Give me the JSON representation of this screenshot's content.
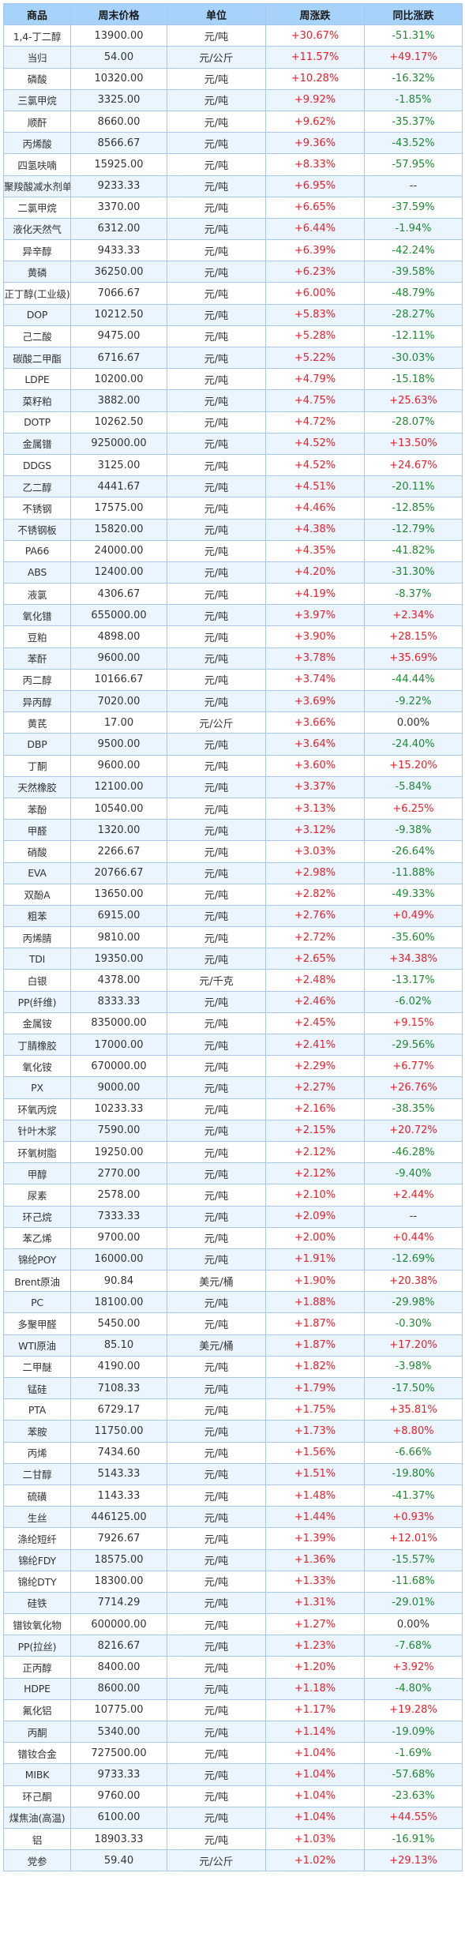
{
  "headers": [
    "商品",
    "周末价格",
    "单位",
    "周涨跌",
    "同比涨跌"
  ],
  "colors": {
    "header_bg": "#a7d3fb",
    "alt_row_bg": "#eaf5ff",
    "up": "#e8202a",
    "down": "#1b8a2d",
    "border": "#a9c7e6"
  },
  "rows": [
    {
      "name": "1,4-丁二醇",
      "price": "13900.00",
      "unit": "元/吨",
      "weekly": "+30.67%",
      "yoy": "-51.31%"
    },
    {
      "name": "当归",
      "price": "54.00",
      "unit": "元/公斤",
      "weekly": "+11.57%",
      "yoy": "+49.17%"
    },
    {
      "name": "磷酸",
      "price": "10320.00",
      "unit": "元/吨",
      "weekly": "+10.28%",
      "yoy": "-16.32%"
    },
    {
      "name": "三氯甲烷",
      "price": "3325.00",
      "unit": "元/吨",
      "weekly": "+9.92%",
      "yoy": "-1.85%"
    },
    {
      "name": "顺酐",
      "price": "8660.00",
      "unit": "元/吨",
      "weekly": "+9.62%",
      "yoy": "-35.37%"
    },
    {
      "name": "丙烯酸",
      "price": "8566.67",
      "unit": "元/吨",
      "weekly": "+9.36%",
      "yoy": "-43.52%"
    },
    {
      "name": "四氢呋喃",
      "price": "15925.00",
      "unit": "元/吨",
      "weekly": "+8.33%",
      "yoy": "-57.95%"
    },
    {
      "name": "聚羧酸减水剂单体",
      "price": "9233.33",
      "unit": "元/吨",
      "weekly": "+6.95%",
      "yoy": "--"
    },
    {
      "name": "二氯甲烷",
      "price": "3370.00",
      "unit": "元/吨",
      "weekly": "+6.65%",
      "yoy": "-37.59%"
    },
    {
      "name": "液化天然气",
      "price": "6312.00",
      "unit": "元/吨",
      "weekly": "+6.44%",
      "yoy": "-1.94%"
    },
    {
      "name": "异辛醇",
      "price": "9433.33",
      "unit": "元/吨",
      "weekly": "+6.39%",
      "yoy": "-42.24%"
    },
    {
      "name": "黄磷",
      "price": "36250.00",
      "unit": "元/吨",
      "weekly": "+6.23%",
      "yoy": "-39.58%"
    },
    {
      "name": "正丁醇(工业级)",
      "price": "7066.67",
      "unit": "元/吨",
      "weekly": "+6.00%",
      "yoy": "-48.79%"
    },
    {
      "name": "DOP",
      "price": "10212.50",
      "unit": "元/吨",
      "weekly": "+5.83%",
      "yoy": "-28.27%"
    },
    {
      "name": "己二酸",
      "price": "9475.00",
      "unit": "元/吨",
      "weekly": "+5.28%",
      "yoy": "-12.11%"
    },
    {
      "name": "碳酸二甲酯",
      "price": "6716.67",
      "unit": "元/吨",
      "weekly": "+5.22%",
      "yoy": "-30.03%"
    },
    {
      "name": "LDPE",
      "price": "10200.00",
      "unit": "元/吨",
      "weekly": "+4.79%",
      "yoy": "-15.18%"
    },
    {
      "name": "菜籽粕",
      "price": "3882.00",
      "unit": "元/吨",
      "weekly": "+4.75%",
      "yoy": "+25.63%"
    },
    {
      "name": "DOTP",
      "price": "10262.50",
      "unit": "元/吨",
      "weekly": "+4.72%",
      "yoy": "-28.07%"
    },
    {
      "name": "金属镨",
      "price": "925000.00",
      "unit": "元/吨",
      "weekly": "+4.52%",
      "yoy": "+13.50%"
    },
    {
      "name": "DDGS",
      "price": "3125.00",
      "unit": "元/吨",
      "weekly": "+4.52%",
      "yoy": "+24.67%"
    },
    {
      "name": "乙二醇",
      "price": "4441.67",
      "unit": "元/吨",
      "weekly": "+4.51%",
      "yoy": "-20.11%"
    },
    {
      "name": "不锈钢",
      "price": "17575.00",
      "unit": "元/吨",
      "weekly": "+4.46%",
      "yoy": "-12.85%"
    },
    {
      "name": "不锈钢板",
      "price": "15820.00",
      "unit": "元/吨",
      "weekly": "+4.38%",
      "yoy": "-12.79%"
    },
    {
      "name": "PA66",
      "price": "24000.00",
      "unit": "元/吨",
      "weekly": "+4.35%",
      "yoy": "-41.82%"
    },
    {
      "name": "ABS",
      "price": "12400.00",
      "unit": "元/吨",
      "weekly": "+4.20%",
      "yoy": "-31.30%"
    },
    {
      "name": "液氯",
      "price": "4306.67",
      "unit": "元/吨",
      "weekly": "+4.19%",
      "yoy": "-8.37%"
    },
    {
      "name": "氧化镨",
      "price": "655000.00",
      "unit": "元/吨",
      "weekly": "+3.97%",
      "yoy": "+2.34%"
    },
    {
      "name": "豆粕",
      "price": "4898.00",
      "unit": "元/吨",
      "weekly": "+3.90%",
      "yoy": "+28.15%"
    },
    {
      "name": "苯酐",
      "price": "9600.00",
      "unit": "元/吨",
      "weekly": "+3.78%",
      "yoy": "+35.69%"
    },
    {
      "name": "丙二醇",
      "price": "10166.67",
      "unit": "元/吨",
      "weekly": "+3.74%",
      "yoy": "-44.44%"
    },
    {
      "name": "异丙醇",
      "price": "7020.00",
      "unit": "元/吨",
      "weekly": "+3.69%",
      "yoy": "-9.22%"
    },
    {
      "name": "黄芪",
      "price": "17.00",
      "unit": "元/公斤",
      "weekly": "+3.66%",
      "yoy": "0.00%"
    },
    {
      "name": "DBP",
      "price": "9500.00",
      "unit": "元/吨",
      "weekly": "+3.64%",
      "yoy": "-24.40%"
    },
    {
      "name": "丁酮",
      "price": "9600.00",
      "unit": "元/吨",
      "weekly": "+3.60%",
      "yoy": "+15.20%"
    },
    {
      "name": "天然橡胶",
      "price": "12100.00",
      "unit": "元/吨",
      "weekly": "+3.37%",
      "yoy": "-5.84%"
    },
    {
      "name": "苯酚",
      "price": "10540.00",
      "unit": "元/吨",
      "weekly": "+3.13%",
      "yoy": "+6.25%"
    },
    {
      "name": "甲醛",
      "price": "1320.00",
      "unit": "元/吨",
      "weekly": "+3.12%",
      "yoy": "-9.38%"
    },
    {
      "name": "硝酸",
      "price": "2266.67",
      "unit": "元/吨",
      "weekly": "+3.03%",
      "yoy": "-26.64%"
    },
    {
      "name": "EVA",
      "price": "20766.67",
      "unit": "元/吨",
      "weekly": "+2.98%",
      "yoy": "-11.88%"
    },
    {
      "name": "双酚A",
      "price": "13650.00",
      "unit": "元/吨",
      "weekly": "+2.82%",
      "yoy": "-49.33%"
    },
    {
      "name": "粗苯",
      "price": "6915.00",
      "unit": "元/吨",
      "weekly": "+2.76%",
      "yoy": "+0.49%"
    },
    {
      "name": "丙烯腈",
      "price": "9810.00",
      "unit": "元/吨",
      "weekly": "+2.72%",
      "yoy": "-35.60%"
    },
    {
      "name": "TDI",
      "price": "19350.00",
      "unit": "元/吨",
      "weekly": "+2.65%",
      "yoy": "+34.38%"
    },
    {
      "name": "白银",
      "price": "4378.00",
      "unit": "元/千克",
      "weekly": "+2.48%",
      "yoy": "-13.17%"
    },
    {
      "name": "PP(纤维)",
      "price": "8333.33",
      "unit": "元/吨",
      "weekly": "+2.46%",
      "yoy": "-6.02%"
    },
    {
      "name": "金属铵",
      "price": "835000.00",
      "unit": "元/吨",
      "weekly": "+2.45%",
      "yoy": "+9.15%"
    },
    {
      "name": "丁腈橡胶",
      "price": "17000.00",
      "unit": "元/吨",
      "weekly": "+2.41%",
      "yoy": "-29.56%"
    },
    {
      "name": "氧化铵",
      "price": "670000.00",
      "unit": "元/吨",
      "weekly": "+2.29%",
      "yoy": "+6.77%"
    },
    {
      "name": "PX",
      "price": "9000.00",
      "unit": "元/吨",
      "weekly": "+2.27%",
      "yoy": "+26.76%"
    },
    {
      "name": "环氧丙烷",
      "price": "10233.33",
      "unit": "元/吨",
      "weekly": "+2.16%",
      "yoy": "-38.35%"
    },
    {
      "name": "针叶木浆",
      "price": "7590.00",
      "unit": "元/吨",
      "weekly": "+2.15%",
      "yoy": "+20.72%"
    },
    {
      "name": "环氧树脂",
      "price": "19250.00",
      "unit": "元/吨",
      "weekly": "+2.12%",
      "yoy": "-46.28%"
    },
    {
      "name": "甲醇",
      "price": "2770.00",
      "unit": "元/吨",
      "weekly": "+2.12%",
      "yoy": "-9.40%"
    },
    {
      "name": "尿素",
      "price": "2578.00",
      "unit": "元/吨",
      "weekly": "+2.10%",
      "yoy": "+2.44%"
    },
    {
      "name": "环己烷",
      "price": "7333.33",
      "unit": "元/吨",
      "weekly": "+2.09%",
      "yoy": "--"
    },
    {
      "name": "苯乙烯",
      "price": "9700.00",
      "unit": "元/吨",
      "weekly": "+2.00%",
      "yoy": "+0.44%"
    },
    {
      "name": "锦纶POY",
      "price": "16000.00",
      "unit": "元/吨",
      "weekly": "+1.91%",
      "yoy": "-12.69%"
    },
    {
      "name": "Brent原油",
      "price": "90.84",
      "unit": "美元/桶",
      "weekly": "+1.90%",
      "yoy": "+20.38%"
    },
    {
      "name": "PC",
      "price": "18100.00",
      "unit": "元/吨",
      "weekly": "+1.88%",
      "yoy": "-29.98%"
    },
    {
      "name": "多聚甲醛",
      "price": "5450.00",
      "unit": "元/吨",
      "weekly": "+1.87%",
      "yoy": "-0.30%"
    },
    {
      "name": "WTI原油",
      "price": "85.10",
      "unit": "美元/桶",
      "weekly": "+1.87%",
      "yoy": "+17.20%"
    },
    {
      "name": "二甲醚",
      "price": "4190.00",
      "unit": "元/吨",
      "weekly": "+1.82%",
      "yoy": "-3.98%"
    },
    {
      "name": "锰硅",
      "price": "7108.33",
      "unit": "元/吨",
      "weekly": "+1.79%",
      "yoy": "-17.50%"
    },
    {
      "name": "PTA",
      "price": "6729.17",
      "unit": "元/吨",
      "weekly": "+1.75%",
      "yoy": "+35.81%"
    },
    {
      "name": "苯胺",
      "price": "11750.00",
      "unit": "元/吨",
      "weekly": "+1.73%",
      "yoy": "+8.80%"
    },
    {
      "name": "丙烯",
      "price": "7434.60",
      "unit": "元/吨",
      "weekly": "+1.56%",
      "yoy": "-6.66%"
    },
    {
      "name": "二甘醇",
      "price": "5143.33",
      "unit": "元/吨",
      "weekly": "+1.51%",
      "yoy": "-19.80%"
    },
    {
      "name": "硫磺",
      "price": "1143.33",
      "unit": "元/吨",
      "weekly": "+1.48%",
      "yoy": "-41.37%"
    },
    {
      "name": "生丝",
      "price": "446125.00",
      "unit": "元/吨",
      "weekly": "+1.44%",
      "yoy": "+0.93%"
    },
    {
      "name": "涤纶短纤",
      "price": "7926.67",
      "unit": "元/吨",
      "weekly": "+1.39%",
      "yoy": "+12.01%"
    },
    {
      "name": "锦纶FDY",
      "price": "18575.00",
      "unit": "元/吨",
      "weekly": "+1.36%",
      "yoy": "-15.57%"
    },
    {
      "name": "锦纶DTY",
      "price": "18300.00",
      "unit": "元/吨",
      "weekly": "+1.33%",
      "yoy": "-11.68%"
    },
    {
      "name": "硅铁",
      "price": "7714.29",
      "unit": "元/吨",
      "weekly": "+1.31%",
      "yoy": "-29.01%"
    },
    {
      "name": "镨钕氧化物",
      "price": "600000.00",
      "unit": "元/吨",
      "weekly": "+1.27%",
      "yoy": "0.00%"
    },
    {
      "name": "PP(拉丝)",
      "price": "8216.67",
      "unit": "元/吨",
      "weekly": "+1.23%",
      "yoy": "-7.68%"
    },
    {
      "name": "正丙醇",
      "price": "8400.00",
      "unit": "元/吨",
      "weekly": "+1.20%",
      "yoy": "+3.92%"
    },
    {
      "name": "HDPE",
      "price": "8600.00",
      "unit": "元/吨",
      "weekly": "+1.18%",
      "yoy": "-4.80%"
    },
    {
      "name": "氟化铝",
      "price": "10775.00",
      "unit": "元/吨",
      "weekly": "+1.17%",
      "yoy": "+19.28%"
    },
    {
      "name": "丙酮",
      "price": "5340.00",
      "unit": "元/吨",
      "weekly": "+1.14%",
      "yoy": "-19.09%"
    },
    {
      "name": "镨钕合金",
      "price": "727500.00",
      "unit": "元/吨",
      "weekly": "+1.04%",
      "yoy": "-1.69%"
    },
    {
      "name": "MIBK",
      "price": "9733.33",
      "unit": "元/吨",
      "weekly": "+1.04%",
      "yoy": "-57.68%"
    },
    {
      "name": "环己酮",
      "price": "9760.00",
      "unit": "元/吨",
      "weekly": "+1.04%",
      "yoy": "-23.63%"
    },
    {
      "name": "煤焦油(高温)",
      "price": "6100.00",
      "unit": "元/吨",
      "weekly": "+1.04%",
      "yoy": "+44.55%"
    },
    {
      "name": "铝",
      "price": "18903.33",
      "unit": "元/吨",
      "weekly": "+1.03%",
      "yoy": "-16.91%"
    },
    {
      "name": "党参",
      "price": "59.40",
      "unit": "元/公斤",
      "weekly": "+1.02%",
      "yoy": "+29.13%"
    }
  ]
}
